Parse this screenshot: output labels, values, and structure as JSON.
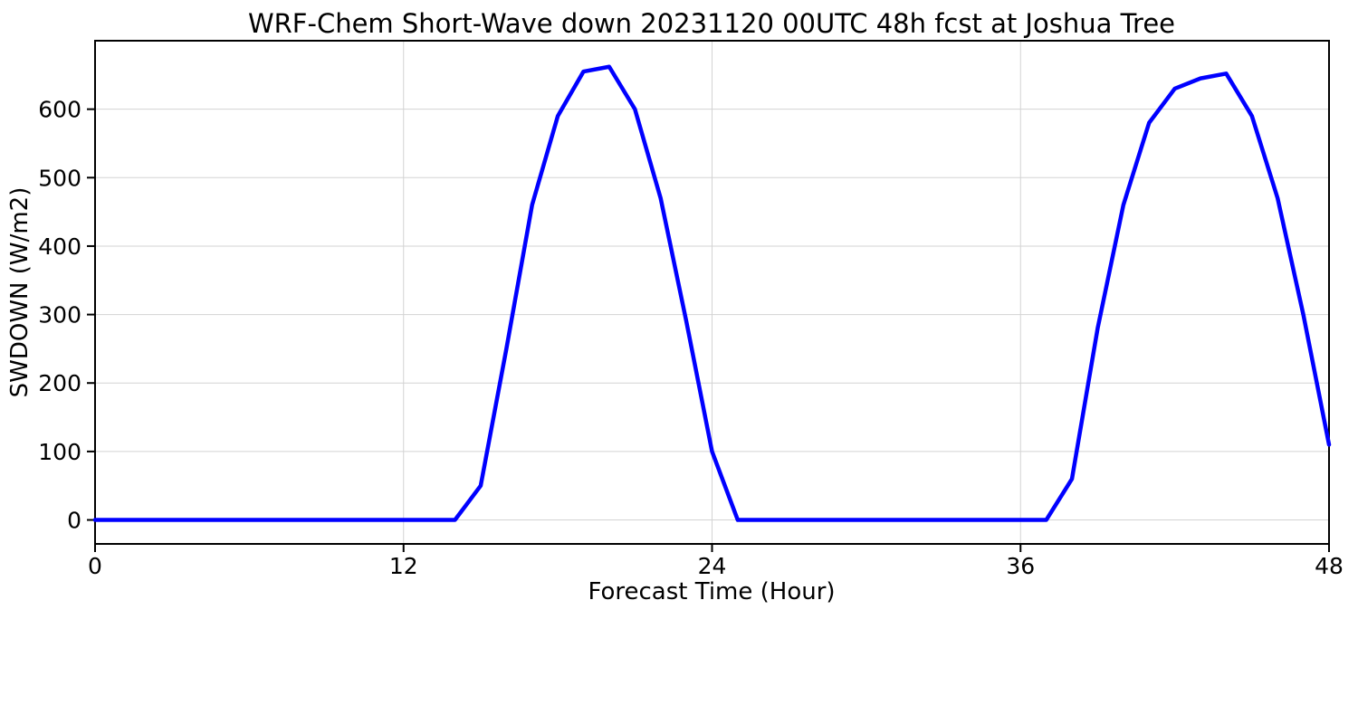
{
  "chart_data": {
    "type": "line",
    "title": "WRF-Chem Short-Wave down  20231120 00UTC 48h fcst at Joshua Tree",
    "xlabel": "Forecast Time (Hour)",
    "ylabel": "SWDOWN  (W/m2)",
    "series_name": "SWDOWN",
    "x": [
      0,
      1,
      2,
      3,
      4,
      5,
      6,
      7,
      8,
      9,
      10,
      11,
      12,
      13,
      14,
      15,
      16,
      17,
      18,
      19,
      20,
      21,
      22,
      23,
      24,
      25,
      26,
      27,
      28,
      29,
      30,
      31,
      32,
      33,
      34,
      35,
      36,
      37,
      38,
      39,
      40,
      41,
      42,
      43,
      44,
      45,
      46,
      47,
      48
    ],
    "values": [
      0,
      0,
      0,
      0,
      0,
      0,
      0,
      0,
      0,
      0,
      0,
      0,
      0,
      0,
      0,
      50,
      250,
      460,
      590,
      655,
      662,
      600,
      470,
      290,
      100,
      0,
      0,
      0,
      0,
      0,
      0,
      0,
      0,
      0,
      0,
      0,
      0,
      0,
      60,
      280,
      460,
      580,
      630,
      645,
      652,
      590,
      470,
      300,
      110
    ],
    "xlim": [
      0,
      48
    ],
    "ylim": [
      -35,
      700
    ],
    "xticks": [
      0,
      12,
      24,
      36,
      48
    ],
    "yticks": [
      0,
      100,
      200,
      300,
      400,
      500,
      600
    ],
    "grid": true,
    "legend": "none",
    "line_color": "#0000ff",
    "line_width": 4.5,
    "background_color": "#ffffff"
  }
}
